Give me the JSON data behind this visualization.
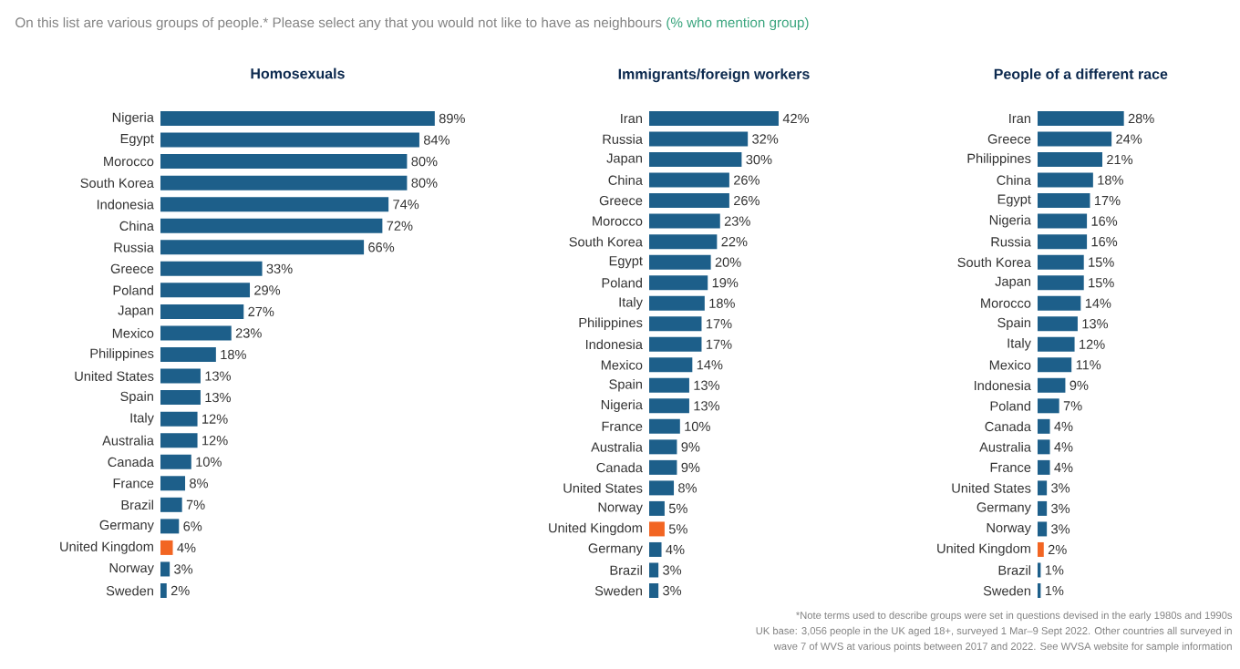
{
  "chart_data": [
    {
      "type": "bar",
      "orientation": "horizontal",
      "title": "Homosexuals",
      "annotations": [
        "On this list are various groups of people.* Please select any that you would not like to have as neighbours",
        "(% who mention group)"
      ],
      "categories": [
        "Nigeria",
        "Egypt",
        "Morocco",
        "South Korea",
        "Indonesia",
        "China",
        "Russia",
        "Greece",
        "Poland",
        "Japan",
        "Mexico",
        "Philippines",
        "United States",
        "Spain",
        "Italy",
        "Australia",
        "Canada",
        "France",
        "Brazil",
        "Germany",
        "United Kingdom",
        "Norway",
        "Sweden"
      ],
      "values": [
        89,
        84,
        80,
        80,
        74,
        72,
        66,
        33,
        29,
        27,
        23,
        18,
        13,
        13,
        12,
        12,
        10,
        8,
        7,
        6,
        4,
        3,
        2
      ],
      "value_labels": [
        "89%",
        "84%",
        "80%",
        "80%",
        "74%",
        "72%",
        "66%",
        "33%",
        "29%",
        "27%",
        "23%",
        "18%",
        "13%",
        "13%",
        "12%",
        "12%",
        "10%",
        "8%",
        "7%",
        "6%",
        "4%",
        "3%",
        "2%"
      ],
      "colors": [
        "#1d5f8a",
        "#1d5f8a",
        "#1d5f8a",
        "#1d5f8a",
        "#1d5f8a",
        "#1d5f8a",
        "#1d5f8a",
        "#1d5f8a",
        "#1d5f8a",
        "#1d5f8a",
        "#1d5f8a",
        "#1d5f8a",
        "#1d5f8a",
        "#1d5f8a",
        "#1d5f8a",
        "#1d5f8a",
        "#1d5f8a",
        "#1d5f8a",
        "#1d5f8a",
        "#1d5f8a",
        "#f26522",
        "#1d5f8a",
        "#1d5f8a"
      ]
    },
    {
      "type": "bar",
      "orientation": "horizontal",
      "title": "Immigrants/foreign workers",
      "categories": [
        "Iran",
        "Russia",
        "Japan",
        "China",
        "Greece",
        "Morocco",
        "South Korea",
        "Egypt",
        "Poland",
        "Italy",
        "Philippines",
        "Indonesia",
        "Mexico",
        "Spain",
        "Nigeria",
        "France",
        "Australia",
        "Canada",
        "United States",
        "Norway",
        "United Kingdom",
        "Germany",
        "Brazil",
        "Sweden"
      ],
      "values": [
        42,
        32,
        30,
        26,
        26,
        23,
        22,
        20,
        19,
        18,
        17,
        17,
        14,
        13,
        13,
        10,
        9,
        9,
        8,
        5,
        5,
        4,
        3,
        3
      ],
      "value_labels": [
        "42%",
        "32%",
        "30%",
        "26%",
        "26%",
        "23%",
        "22%",
        "20%",
        "19%",
        "18%",
        "17%",
        "17%",
        "14%",
        "13%",
        "13%",
        "10%",
        "9%",
        "9%",
        "8%",
        "5%",
        "5%",
        "4%",
        "3%",
        "3%"
      ],
      "colors": [
        "#1d5f8a",
        "#1d5f8a",
        "#1d5f8a",
        "#1d5f8a",
        "#1d5f8a",
        "#1d5f8a",
        "#1d5f8a",
        "#1d5f8a",
        "#1d5f8a",
        "#1d5f8a",
        "#1d5f8a",
        "#1d5f8a",
        "#1d5f8a",
        "#1d5f8a",
        "#1d5f8a",
        "#1d5f8a",
        "#1d5f8a",
        "#1d5f8a",
        "#1d5f8a",
        "#1d5f8a",
        "#f26522",
        "#1d5f8a",
        "#1d5f8a",
        "#1d5f8a"
      ]
    },
    {
      "type": "bar",
      "orientation": "horizontal",
      "title": "People of a different race",
      "annotations": [
        "*Note terms used to describe groups were set in questions devised in the early 1980s and 1990s",
        "UK base: 3,056 people in the UK aged 18+, surveyed 1 Mar–9 Sept 2022. Other countries all surveyed in",
        "wave 7 of WVS at various points between 2017 and 2022. See WVSA website for sample information"
      ],
      "categories": [
        "Iran",
        "Greece",
        "Philippines",
        "China",
        "Egypt",
        "Nigeria",
        "Russia",
        "South Korea",
        "Japan",
        "Morocco",
        "Spain",
        "Italy",
        "Mexico",
        "Indonesia",
        "Poland",
        "Canada",
        "Australia",
        "France",
        "United States",
        "Germany",
        "Norway",
        "United Kingdom",
        "Brazil",
        "Sweden"
      ],
      "values": [
        28,
        24,
        21,
        18,
        17,
        16,
        16,
        15,
        15,
        14,
        13,
        12,
        11,
        9,
        7,
        4,
        4,
        4,
        3,
        3,
        3,
        2,
        1,
        1
      ],
      "value_labels": [
        "28%",
        "24%",
        "21%",
        "18%",
        "17%",
        "16%",
        "16%",
        "15%",
        "15%",
        "14%",
        "13%",
        "12%",
        "11%",
        "9%",
        "7%",
        "4%",
        "4%",
        "4%",
        "3%",
        "3%",
        "3%",
        "2%",
        "1%",
        "1%"
      ],
      "colors": [
        "#1d5f8a",
        "#1d5f8a",
        "#1d5f8a",
        "#1d5f8a",
        "#1d5f8a",
        "#1d5f8a",
        "#1d5f8a",
        "#1d5f8a",
        "#1d5f8a",
        "#1d5f8a",
        "#1d5f8a",
        "#1d5f8a",
        "#1d5f8a",
        "#1d5f8a",
        "#1d5f8a",
        "#1d5f8a",
        "#1d5f8a",
        "#1d5f8a",
        "#1d5f8a",
        "#1d5f8a",
        "#1d5f8a",
        "#f26522",
        "#1d5f8a",
        "#1d5f8a"
      ]
    }
  ]
}
